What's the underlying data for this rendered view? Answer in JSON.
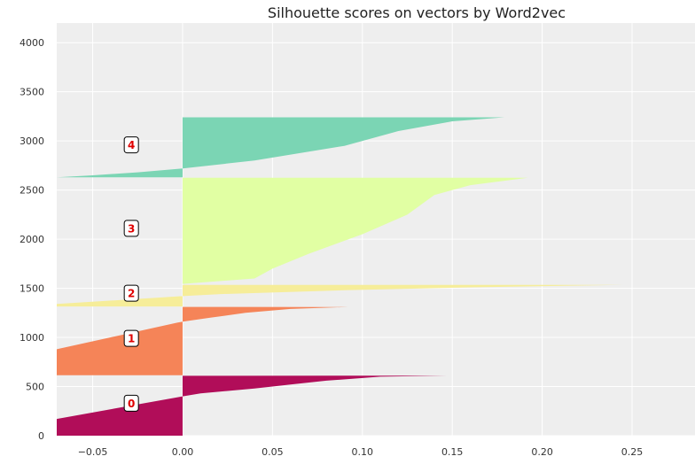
{
  "chart_data": {
    "type": "area",
    "title": "Silhouette scores on vectors by Word2vec",
    "xlabel": "",
    "ylabel": "",
    "xlim": [
      -0.07,
      0.285
    ],
    "ylim": [
      0,
      4200
    ],
    "grid": true,
    "x_ticks": [
      "−0.05",
      "0.00",
      "0.05",
      "0.10",
      "0.15",
      "0.20",
      "0.25"
    ],
    "x_tick_values": [
      -0.05,
      0.0,
      0.05,
      0.1,
      0.15,
      0.2,
      0.25
    ],
    "y_ticks": [
      "0",
      "500",
      "1000",
      "1500",
      "2000",
      "2500",
      "3000",
      "3500",
      "4000"
    ],
    "y_tick_values": [
      0,
      500,
      1000,
      1500,
      2000,
      2500,
      3000,
      3500,
      4000
    ],
    "clusters": [
      {
        "label": "0",
        "y_start": 0,
        "y_end": 610,
        "label_y": 330,
        "color": "#ad0050",
        "profile": [
          [
            0,
            -0.07
          ],
          [
            170,
            -0.07
          ],
          [
            400,
            0.0
          ],
          [
            430,
            0.01
          ],
          [
            480,
            0.04
          ],
          [
            520,
            0.06
          ],
          [
            560,
            0.08
          ],
          [
            600,
            0.11
          ],
          [
            610,
            0.147
          ]
        ]
      },
      {
        "label": "1",
        "y_start": 615,
        "y_end": 1310,
        "label_y": 990,
        "color": "#f47d4f",
        "profile": [
          [
            615,
            -0.07
          ],
          [
            880,
            -0.07
          ],
          [
            1150,
            -0.003
          ],
          [
            1160,
            0.0
          ],
          [
            1200,
            0.015
          ],
          [
            1250,
            0.035
          ],
          [
            1290,
            0.06
          ],
          [
            1310,
            0.092
          ]
        ]
      },
      {
        "label": "2",
        "y_start": 1315,
        "y_end": 1535,
        "label_y": 1450,
        "color": "#f6ec94",
        "profile": [
          [
            1315,
            -0.07
          ],
          [
            1340,
            -0.07
          ],
          [
            1420,
            0.0
          ],
          [
            1440,
            0.02
          ],
          [
            1480,
            0.09
          ],
          [
            1510,
            0.16
          ],
          [
            1535,
            0.245
          ]
        ]
      },
      {
        "label": "3",
        "y_start": 1545,
        "y_end": 2625,
        "label_y": 2110,
        "color": "#dfff9e",
        "profile": [
          [
            1545,
            0.0
          ],
          [
            1600,
            0.04
          ],
          [
            1700,
            0.05
          ],
          [
            1850,
            0.07
          ],
          [
            2050,
            0.1
          ],
          [
            2250,
            0.125
          ],
          [
            2450,
            0.14
          ],
          [
            2550,
            0.16
          ],
          [
            2625,
            0.192
          ]
        ]
      },
      {
        "label": "4",
        "y_start": 2630,
        "y_end": 3240,
        "label_y": 2960,
        "color": "#74d3b0",
        "profile": [
          [
            2630,
            -0.07
          ],
          [
            2650,
            -0.05
          ],
          [
            2680,
            -0.025
          ],
          [
            2720,
            0.0
          ],
          [
            2800,
            0.04
          ],
          [
            2950,
            0.09
          ],
          [
            3100,
            0.12
          ],
          [
            3200,
            0.15
          ],
          [
            3240,
            0.179
          ]
        ]
      }
    ]
  }
}
